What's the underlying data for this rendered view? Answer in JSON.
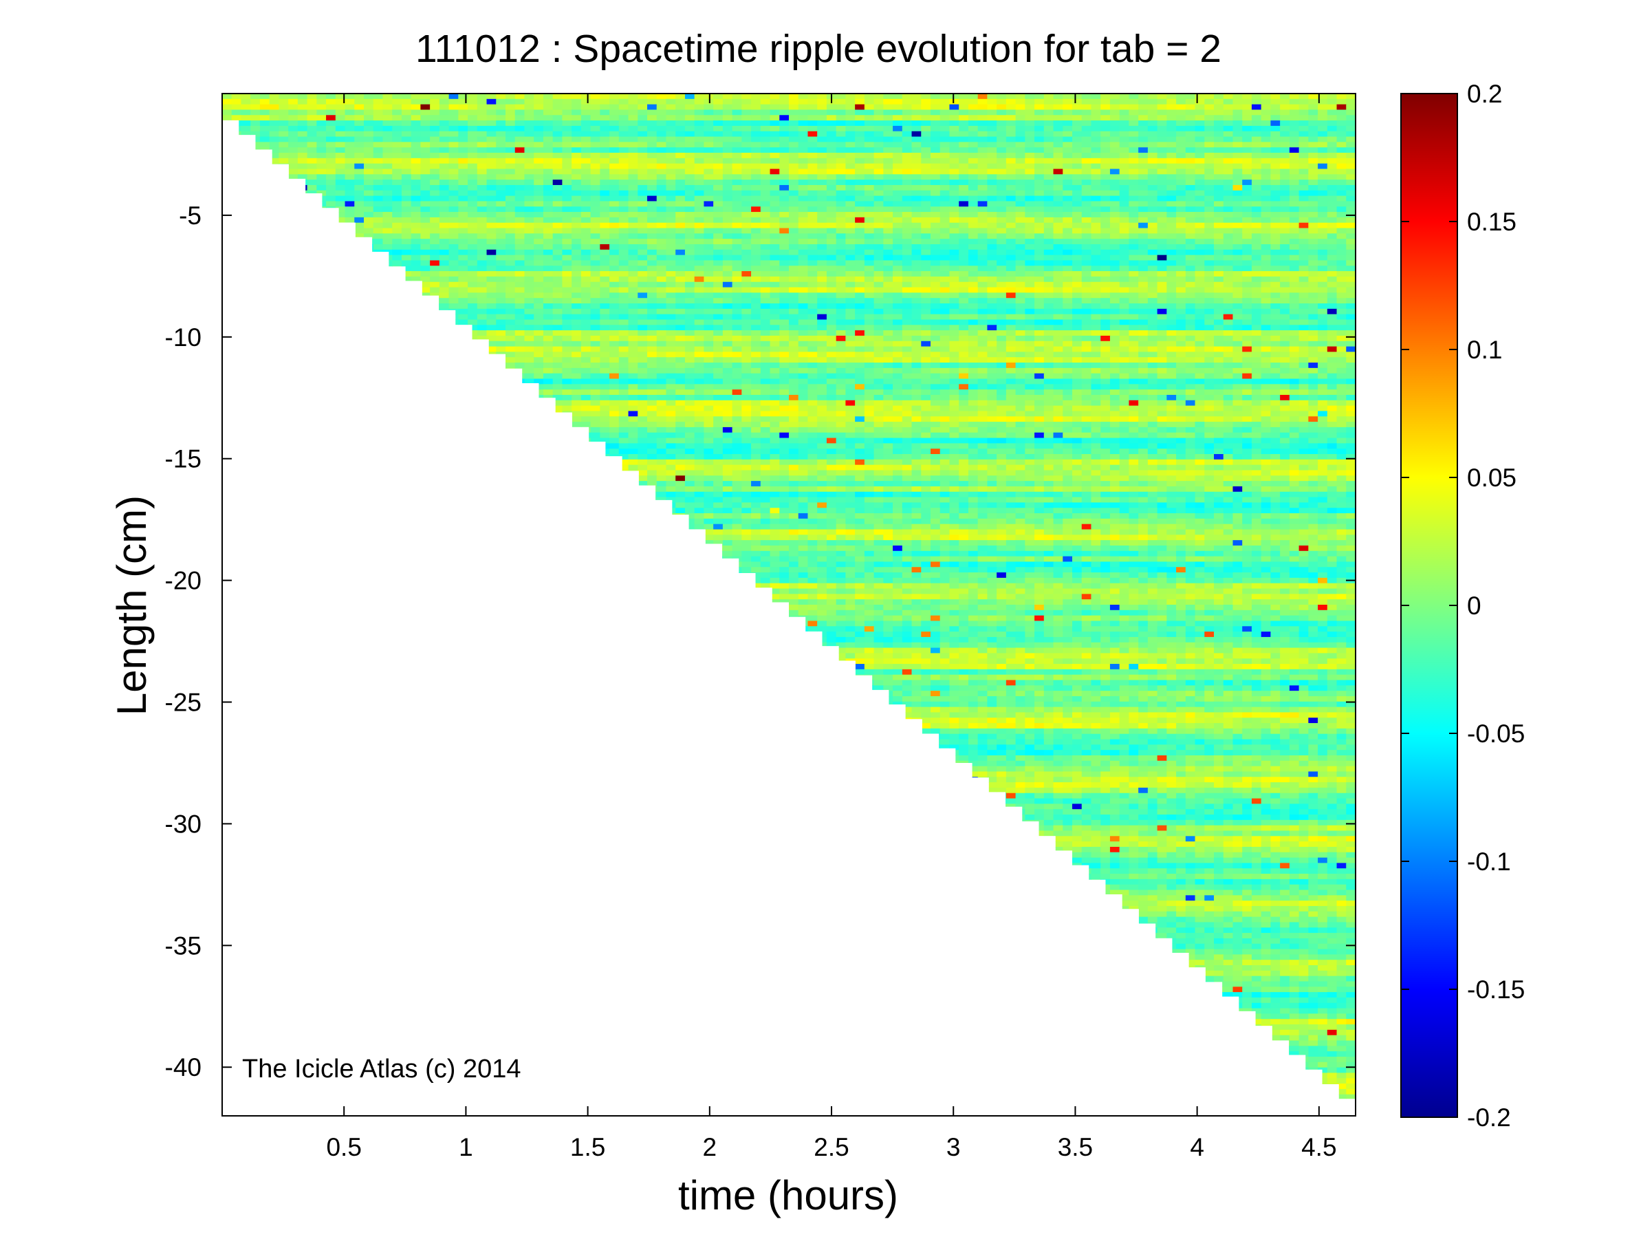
{
  "chart_data": {
    "type": "heatmap",
    "title": "111012 : Spacetime ripple evolution for tab = 2",
    "xlabel": "time (hours)",
    "ylabel": "Length (cm)",
    "xlim": [
      0,
      4.65
    ],
    "ylim": [
      -42,
      0
    ],
    "xticks": [
      0.5,
      1,
      1.5,
      2,
      2.5,
      3,
      3.5,
      4,
      4.5
    ],
    "xtick_labels": [
      "0.5",
      "1",
      "1.5",
      "2",
      "2.5",
      "3",
      "3.5",
      "4",
      "4.5"
    ],
    "yticks": [
      -5,
      -10,
      -15,
      -20,
      -25,
      -30,
      -35,
      -40
    ],
    "ytick_labels": [
      "-5",
      "-10",
      "-15",
      "-20",
      "-25",
      "-30",
      "-35",
      "-40"
    ],
    "colorbar": {
      "range": [
        -0.2,
        0.2
      ],
      "ticks": [
        0.2,
        0.15,
        0.1,
        0.05,
        0,
        -0.05,
        -0.1,
        -0.15,
        -0.2
      ],
      "tick_labels": [
        "0.2",
        "0.15",
        "0.1",
        "0.05",
        "0",
        "-0.05",
        "-0.1",
        "-0.15",
        "-0.2"
      ],
      "colormap": "jet"
    },
    "data_region": {
      "description_of_shape": "triangular: icicle length grows linearly with time",
      "length_front": [
        [
          0.05,
          -0.5
        ],
        [
          4.65,
          -41.3
        ]
      ]
    },
    "grid": false,
    "annotation": "The Icicle Atlas (c) 2014"
  }
}
